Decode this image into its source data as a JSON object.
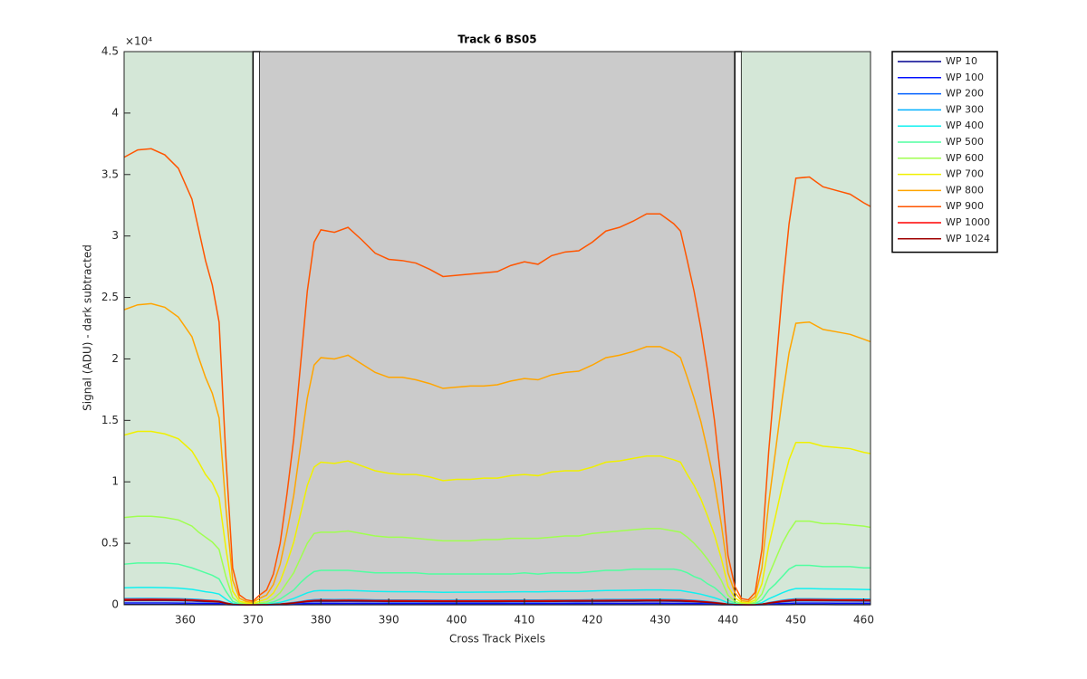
{
  "chart_data": {
    "type": "line",
    "title": "Track 6  BS05",
    "xlabel": "Cross Track Pixels",
    "ylabel": "Signal (ADU) - dark subtracted",
    "y_exponent": "×10⁴",
    "xlim": [
      351,
      461
    ],
    "xticks": [
      360,
      370,
      380,
      390,
      400,
      410,
      420,
      430,
      440,
      450,
      460
    ],
    "ylim": [
      0,
      45000
    ],
    "yticks": [
      0,
      {
        "value": 5000,
        "label": "0.5"
      },
      {
        "value": 10000,
        "label": "1"
      },
      {
        "value": 15000,
        "label": "1.5"
      },
      {
        "value": 20000,
        "label": "2"
      },
      {
        "value": 25000,
        "label": "2.5"
      },
      {
        "value": 30000,
        "label": "3"
      },
      {
        "value": 35000,
        "label": "3.5"
      },
      {
        "value": 40000,
        "label": "4"
      },
      {
        "value": 45000,
        "label": "4.5"
      }
    ],
    "legend": "outside-northeast",
    "regions": [
      {
        "x": [
          351,
          370
        ],
        "color": "#d4e7d7",
        "edgecolor": "none"
      },
      {
        "x": [
          370,
          371
        ],
        "color": "#ffffff",
        "edgecolor": "#000000"
      },
      {
        "x": [
          371,
          441
        ],
        "color": "#cbcbcb",
        "edgecolor": "none"
      },
      {
        "x": [
          441,
          442
        ],
        "color": "#ffffff",
        "edgecolor": "#000000"
      },
      {
        "x": [
          442,
          461
        ],
        "color": "#d4e7d7",
        "edgecolor": "none"
      }
    ],
    "x": [
      351,
      353,
      355,
      357,
      359,
      361,
      362,
      363,
      364,
      365,
      366,
      367,
      368,
      369,
      370,
      371,
      372,
      373,
      374,
      375,
      376,
      377,
      378,
      379,
      380,
      382,
      384,
      386,
      388,
      390,
      392,
      394,
      396,
      398,
      400,
      402,
      404,
      406,
      408,
      410,
      412,
      414,
      416,
      418,
      420,
      422,
      424,
      426,
      428,
      430,
      432,
      433,
      434,
      435,
      436,
      437,
      438,
      439,
      440,
      441,
      442,
      443,
      444,
      445,
      446,
      447,
      448,
      449,
      450,
      452,
      454,
      456,
      458,
      460,
      461
    ],
    "series": [
      {
        "name": "WP 10",
        "color": "#00008f",
        "values": [
          15,
          15,
          15,
          15,
          14,
          13,
          12,
          11,
          10,
          9,
          5,
          1,
          0,
          0,
          0,
          0,
          0,
          1,
          2,
          4,
          5,
          8,
          10,
          12,
          12,
          12,
          12,
          12,
          11,
          11,
          11,
          11,
          11,
          11,
          11,
          11,
          11,
          11,
          11,
          11,
          11,
          11,
          11,
          12,
          12,
          12,
          12,
          12,
          13,
          13,
          12,
          12,
          11,
          10,
          9,
          8,
          6,
          4,
          2,
          1,
          0,
          0,
          0,
          2,
          5,
          8,
          10,
          12,
          14,
          14,
          14,
          13,
          13,
          13,
          13
        ]
      },
      {
        "name": "WP 100",
        "color": "#0010ff",
        "values": [
          150,
          150,
          150,
          150,
          140,
          130,
          120,
          110,
          100,
          90,
          50,
          10,
          0,
          0,
          0,
          0,
          0,
          10,
          20,
          40,
          50,
          80,
          100,
          120,
          120,
          120,
          120,
          120,
          110,
          110,
          110,
          110,
          110,
          110,
          110,
          110,
          110,
          110,
          110,
          110,
          110,
          110,
          110,
          120,
          120,
          120,
          120,
          120,
          130,
          130,
          120,
          120,
          110,
          100,
          90,
          80,
          60,
          40,
          20,
          10,
          0,
          0,
          0,
          20,
          50,
          80,
          100,
          120,
          140,
          140,
          140,
          130,
          130,
          130,
          130
        ]
      },
      {
        "name": "WP 200",
        "color": "#0060ff",
        "values": [
          330,
          330,
          330,
          330,
          320,
          300,
          270,
          250,
          230,
          210,
          110,
          30,
          10,
          0,
          0,
          10,
          10,
          20,
          50,
          80,
          120,
          180,
          230,
          270,
          270,
          270,
          280,
          270,
          260,
          250,
          250,
          250,
          250,
          240,
          240,
          240,
          240,
          240,
          250,
          250,
          250,
          260,
          260,
          260,
          270,
          270,
          280,
          280,
          290,
          290,
          280,
          270,
          250,
          230,
          200,
          170,
          140,
          90,
          40,
          10,
          0,
          0,
          10,
          40,
          110,
          170,
          230,
          280,
          310,
          310,
          310,
          300,
          300,
          290,
          290
        ]
      },
      {
        "name": "WP 300",
        "color": "#00b0ff",
        "values": [
          510,
          520,
          520,
          510,
          500,
          460,
          430,
          390,
          360,
          320,
          170,
          40,
          10,
          10,
          0,
          10,
          20,
          40,
          70,
          130,
          190,
          270,
          360,
          410,
          430,
          420,
          430,
          420,
          400,
          390,
          390,
          390,
          380,
          370,
          380,
          380,
          380,
          380,
          390,
          390,
          390,
          400,
          400,
          400,
          410,
          430,
          430,
          440,
          450,
          450,
          430,
          430,
          390,
          360,
          320,
          270,
          210,
          140,
          60,
          20,
          10,
          10,
          10,
          60,
          180,
          270,
          360,
          430,
          490,
          490,
          480,
          470,
          470,
          460,
          450
        ]
      },
      {
        "name": "WP 400",
        "color": "#10f0f0",
        "values": [
          1380,
          1410,
          1410,
          1390,
          1350,
          1250,
          1160,
          1060,
          990,
          870,
          460,
          110,
          30,
          20,
          10,
          30,
          50,
          100,
          190,
          340,
          510,
          740,
          970,
          1120,
          1160,
          1150,
          1170,
          1130,
          1090,
          1070,
          1060,
          1060,
          1040,
          1010,
          1020,
          1020,
          1030,
          1030,
          1050,
          1060,
          1050,
          1080,
          1090,
          1090,
          1120,
          1160,
          1170,
          1190,
          1210,
          1210,
          1180,
          1160,
          1060,
          970,
          860,
          720,
          570,
          380,
          150,
          60,
          20,
          20,
          40,
          170,
          480,
          720,
          970,
          1180,
          1320,
          1320,
          1290,
          1280,
          1270,
          1240,
          1230
        ]
      },
      {
        "name": "WP 500",
        "color": "#50ffa0",
        "values": [
          3300,
          3400,
          3400,
          3400,
          3300,
          3000,
          2800,
          2600,
          2400,
          2100,
          1100,
          280,
          70,
          40,
          30,
          70,
          110,
          230,
          460,
          830,
          1200,
          1800,
          2300,
          2700,
          2800,
          2800,
          2800,
          2700,
          2600,
          2600,
          2600,
          2600,
          2500,
          2500,
          2500,
          2500,
          2500,
          2500,
          2500,
          2600,
          2500,
          2600,
          2600,
          2600,
          2700,
          2800,
          2800,
          2900,
          2900,
          2900,
          2900,
          2800,
          2600,
          2300,
          2100,
          1700,
          1400,
          920,
          370,
          140,
          50,
          40,
          90,
          410,
          1200,
          1700,
          2300,
          2900,
          3200,
          3200,
          3100,
          3100,
          3100,
          3000,
          3000
        ]
      },
      {
        "name": "WP 600",
        "color": "#a0ff50",
        "values": [
          7100,
          7200,
          7200,
          7100,
          6900,
          6400,
          5900,
          5500,
          5100,
          4500,
          2300,
          590,
          160,
          80,
          60,
          160,
          230,
          490,
          980,
          1800,
          2600,
          3800,
          5000,
          5800,
          5900,
          5900,
          6000,
          5800,
          5600,
          5500,
          5500,
          5400,
          5300,
          5200,
          5200,
          5200,
          5300,
          5300,
          5400,
          5400,
          5400,
          5500,
          5600,
          5600,
          5800,
          5900,
          6000,
          6100,
          6200,
          6200,
          6000,
          5900,
          5500,
          5000,
          4400,
          3700,
          2900,
          2000,
          780,
          290,
          100,
          80,
          200,
          880,
          2400,
          3700,
          5000,
          6000,
          6800,
          6800,
          6600,
          6600,
          6500,
          6400,
          6300
        ]
      },
      {
        "name": "WP 700",
        "color": "#f0f000",
        "values": [
          13800,
          14100,
          14100,
          13900,
          13500,
          12500,
          11600,
          10600,
          9900,
          8700,
          4600,
          1100,
          300,
          150,
          110,
          300,
          460,
          950,
          1900,
          3400,
          5100,
          7400,
          9700,
          11200,
          11600,
          11500,
          11700,
          11300,
          10900,
          10700,
          10600,
          10600,
          10400,
          10100,
          10200,
          10200,
          10300,
          10300,
          10500,
          10600,
          10500,
          10800,
          10900,
          10900,
          11200,
          11600,
          11700,
          11900,
          12100,
          12100,
          11800,
          11600,
          10600,
          9700,
          8600,
          7200,
          5700,
          3800,
          1500,
          570,
          190,
          150,
          380,
          1700,
          4800,
          7200,
          9700,
          11800,
          13200,
          13200,
          12900,
          12800,
          12700,
          12400,
          12300
        ]
      },
      {
        "name": "WP 800",
        "color": "#ffa500",
        "values": [
          24000,
          24400,
          24500,
          24200,
          23400,
          21800,
          20100,
          18500,
          17200,
          15200,
          7900,
          2000,
          530,
          260,
          200,
          530,
          790,
          1650,
          3300,
          5900,
          8900,
          12900,
          16800,
          19500,
          20100,
          20000,
          20300,
          19600,
          18900,
          18500,
          18500,
          18300,
          18000,
          17600,
          17700,
          17800,
          17800,
          17900,
          18200,
          18400,
          18300,
          18700,
          18900,
          19000,
          19500,
          20100,
          20300,
          20600,
          21000,
          21000,
          20500,
          20100,
          18500,
          16800,
          14900,
          12500,
          9900,
          6600,
          2600,
          1000,
          330,
          260,
          660,
          3000,
          8300,
          12500,
          16800,
          20500,
          22900,
          23000,
          22400,
          22200,
          22000,
          21600,
          21400
        ]
      },
      {
        "name": "WP 900",
        "color": "#ff5500",
        "values": [
          36400,
          37000,
          37100,
          36600,
          35500,
          33000,
          30500,
          28000,
          26000,
          23000,
          12000,
          3000,
          800,
          400,
          300,
          800,
          1200,
          2500,
          5000,
          9000,
          13500,
          19500,
          25500,
          29500,
          30500,
          30300,
          30700,
          29700,
          28600,
          28100,
          28000,
          27800,
          27300,
          26700,
          26800,
          26900,
          27000,
          27100,
          27600,
          27900,
          27700,
          28400,
          28700,
          28800,
          29500,
          30400,
          30700,
          31200,
          31800,
          31800,
          31000,
          30400,
          28000,
          25500,
          22500,
          19000,
          15000,
          10000,
          4000,
          1500,
          500,
          400,
          1000,
          4500,
          12500,
          19000,
          25500,
          31000,
          34700,
          34800,
          34000,
          33700,
          33400,
          32700,
          32400
        ]
      },
      {
        "name": "WP 1000",
        "color": "#ff0000",
        "values": [
          440,
          440,
          450,
          440,
          430,
          400,
          370,
          340,
          310,
          280,
          140,
          40,
          10,
          0,
          0,
          10,
          10,
          30,
          60,
          110,
          160,
          230,
          310,
          350,
          370,
          360,
          370,
          360,
          340,
          340,
          340,
          330,
          330,
          320,
          320,
          320,
          320,
          330,
          330,
          330,
          330,
          340,
          340,
          350,
          350,
          360,
          370,
          370,
          380,
          380,
          370,
          360,
          340,
          310,
          270,
          230,
          180,
          120,
          50,
          20,
          10,
          0,
          10,
          50,
          150,
          230,
          310,
          370,
          420,
          420,
          410,
          400,
          400,
          390,
          390
        ]
      },
      {
        "name": "WP 1024",
        "color": "#a00000",
        "values": [
          360,
          370,
          370,
          370,
          360,
          330,
          310,
          280,
          260,
          230,
          120,
          30,
          10,
          0,
          0,
          10,
          10,
          30,
          50,
          90,
          140,
          200,
          260,
          300,
          310,
          300,
          310,
          300,
          290,
          280,
          280,
          280,
          270,
          270,
          270,
          270,
          270,
          270,
          280,
          280,
          280,
          280,
          290,
          290,
          300,
          300,
          310,
          310,
          320,
          320,
          310,
          300,
          280,
          260,
          230,
          190,
          150,
          100,
          40,
          20,
          10,
          0,
          10,
          50,
          130,
          190,
          260,
          310,
          350,
          350,
          340,
          340,
          330,
          330,
          320
        ]
      }
    ]
  }
}
